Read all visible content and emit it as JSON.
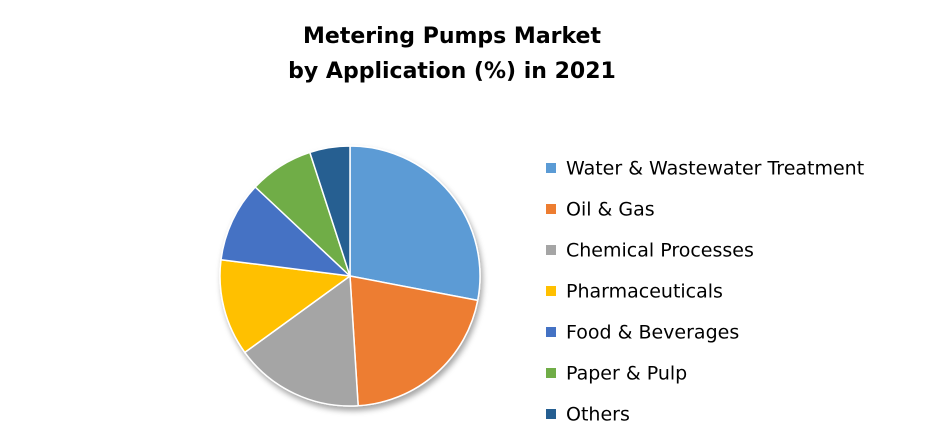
{
  "chart_data": {
    "type": "pie",
    "title": [
      "Metering Pumps Market",
      "by Application (%) in 2021"
    ],
    "categories": [
      "Water & Wastewater Treatment",
      "Oil & Gas",
      "Chemical Processes",
      "Pharmaceuticals",
      "Food & Beverages",
      "Paper & Pulp",
      "Others"
    ],
    "values": [
      28,
      21,
      16,
      12,
      10,
      8,
      5
    ],
    "colors": [
      "#5b9bd5",
      "#ed7d31",
      "#a5a5a5",
      "#ffc000",
      "#4472c4",
      "#70ad47",
      "#255e91"
    ],
    "legend": "right"
  }
}
